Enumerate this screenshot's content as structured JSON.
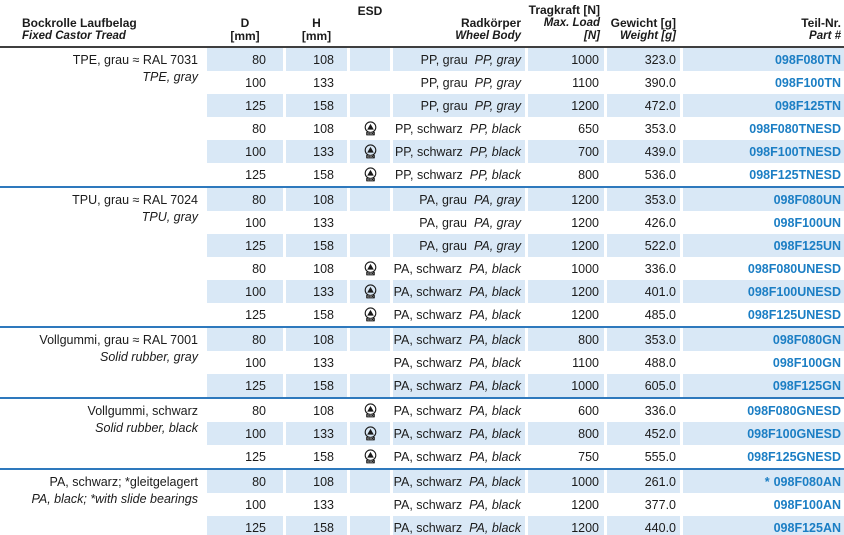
{
  "colors": {
    "row_shade": "#d9e8f6",
    "part_number_blue": "#1b7ec4",
    "group_separator_blue": "#2e79bd",
    "header_rule_dark": "#3f3f3f"
  },
  "header": {
    "col_tread": {
      "de": "Bockrolle Laufbelag",
      "en": "Fixed Castor Tread"
    },
    "col_d": {
      "line1": "D",
      "line2": "[mm]"
    },
    "col_h": {
      "line1": "H",
      "line2": "[mm]"
    },
    "col_esd": {
      "line1": "ESD"
    },
    "col_body": {
      "de": "Radkörper",
      "en": "Wheel Body"
    },
    "col_load": {
      "de": "Tragkraft [N]",
      "en": "Max. Load [N]"
    },
    "col_weight": {
      "de": "Gewicht [g]",
      "en": "Weight [g]"
    },
    "col_part": {
      "de": "Teil-Nr.",
      "en": "Part #"
    }
  },
  "esd_icon": {
    "name": "esd-symbol",
    "label": "ESD"
  },
  "groups": [
    {
      "label_de": "TPE, grau ≈ RAL 7031",
      "label_en": "TPE, gray",
      "rows": [
        {
          "d": "80",
          "h": "108",
          "esd": false,
          "body_de": "PP, grau",
          "body_en": "PP, gray",
          "load": "1000",
          "weight": "323.0",
          "part_prefix": "",
          "part": "098F080TN"
        },
        {
          "d": "100",
          "h": "133",
          "esd": false,
          "body_de": "PP, grau",
          "body_en": "PP, gray",
          "load": "1100",
          "weight": "390.0",
          "part_prefix": "",
          "part": "098F100TN"
        },
        {
          "d": "125",
          "h": "158",
          "esd": false,
          "body_de": "PP, grau",
          "body_en": "PP, gray",
          "load": "1200",
          "weight": "472.0",
          "part_prefix": "",
          "part": "098F125TN"
        },
        {
          "d": "80",
          "h": "108",
          "esd": true,
          "body_de": "PP, schwarz",
          "body_en": "PP, black",
          "load": "650",
          "weight": "353.0",
          "part_prefix": "",
          "part": "098F080TNESD"
        },
        {
          "d": "100",
          "h": "133",
          "esd": true,
          "body_de": "PP, schwarz",
          "body_en": "PP, black",
          "load": "700",
          "weight": "439.0",
          "part_prefix": "",
          "part": "098F100TNESD"
        },
        {
          "d": "125",
          "h": "158",
          "esd": true,
          "body_de": "PP, schwarz",
          "body_en": "PP, black",
          "load": "800",
          "weight": "536.0",
          "part_prefix": "",
          "part": "098F125TNESD"
        }
      ]
    },
    {
      "label_de": "TPU, grau ≈ RAL 7024",
      "label_en": "TPU, gray",
      "rows": [
        {
          "d": "80",
          "h": "108",
          "esd": false,
          "body_de": "PA, grau",
          "body_en": "PA, gray",
          "load": "1200",
          "weight": "353.0",
          "part_prefix": "",
          "part": "098F080UN"
        },
        {
          "d": "100",
          "h": "133",
          "esd": false,
          "body_de": "PA, grau",
          "body_en": "PA, gray",
          "load": "1200",
          "weight": "426.0",
          "part_prefix": "",
          "part": "098F100UN"
        },
        {
          "d": "125",
          "h": "158",
          "esd": false,
          "body_de": "PA, grau",
          "body_en": "PA, gray",
          "load": "1200",
          "weight": "522.0",
          "part_prefix": "",
          "part": "098F125UN"
        },
        {
          "d": "80",
          "h": "108",
          "esd": true,
          "body_de": "PA, schwarz",
          "body_en": "PA, black",
          "load": "1000",
          "weight": "336.0",
          "part_prefix": "",
          "part": "098F080UNESD"
        },
        {
          "d": "100",
          "h": "133",
          "esd": true,
          "body_de": "PA, schwarz",
          "body_en": "PA, black",
          "load": "1200",
          "weight": "401.0",
          "part_prefix": "",
          "part": "098F100UNESD"
        },
        {
          "d": "125",
          "h": "158",
          "esd": true,
          "body_de": "PA, schwarz",
          "body_en": "PA, black",
          "load": "1200",
          "weight": "485.0",
          "part_prefix": "",
          "part": "098F125UNESD"
        }
      ]
    },
    {
      "label_de": "Vollgummi, grau ≈ RAL 7001",
      "label_en": "Solid rubber, gray",
      "rows": [
        {
          "d": "80",
          "h": "108",
          "esd": false,
          "body_de": "PA, schwarz",
          "body_en": "PA, black",
          "load": "800",
          "weight": "353.0",
          "part_prefix": "",
          "part": "098F080GN"
        },
        {
          "d": "100",
          "h": "133",
          "esd": false,
          "body_de": "PA, schwarz",
          "body_en": "PA, black",
          "load": "1100",
          "weight": "488.0",
          "part_prefix": "",
          "part": "098F100GN"
        },
        {
          "d": "125",
          "h": "158",
          "esd": false,
          "body_de": "PA, schwarz",
          "body_en": "PA, black",
          "load": "1000",
          "weight": "605.0",
          "part_prefix": "",
          "part": "098F125GN"
        }
      ]
    },
    {
      "label_de": "Vollgummi, schwarz",
      "label_en": "Solid rubber, black",
      "rows": [
        {
          "d": "80",
          "h": "108",
          "esd": true,
          "body_de": "PA, schwarz",
          "body_en": "PA, black",
          "load": "600",
          "weight": "336.0",
          "part_prefix": "",
          "part": "098F080GNESD"
        },
        {
          "d": "100",
          "h": "133",
          "esd": true,
          "body_de": "PA, schwarz",
          "body_en": "PA, black",
          "load": "800",
          "weight": "452.0",
          "part_prefix": "",
          "part": "098F100GNESD"
        },
        {
          "d": "125",
          "h": "158",
          "esd": true,
          "body_de": "PA, schwarz",
          "body_en": "PA, black",
          "load": "750",
          "weight": "555.0",
          "part_prefix": "",
          "part": "098F125GNESD"
        }
      ]
    },
    {
      "label_de": "PA, schwarz; *gleitgelagert",
      "label_en": "PA, black; *with slide bearings",
      "rows": [
        {
          "d": "80",
          "h": "108",
          "esd": false,
          "body_de": "PA, schwarz",
          "body_en": "PA, black",
          "load": "1000",
          "weight": "261.0",
          "part_prefix": "*",
          "part": "098F080AN"
        },
        {
          "d": "100",
          "h": "133",
          "esd": false,
          "body_de": "PA, schwarz",
          "body_en": "PA, black",
          "load": "1200",
          "weight": "377.0",
          "part_prefix": "",
          "part": "098F100AN"
        },
        {
          "d": "125",
          "h": "158",
          "esd": false,
          "body_de": "PA, schwarz",
          "body_en": "PA, black",
          "load": "1200",
          "weight": "440.0",
          "part_prefix": "",
          "part": "098F125AN"
        }
      ]
    }
  ]
}
